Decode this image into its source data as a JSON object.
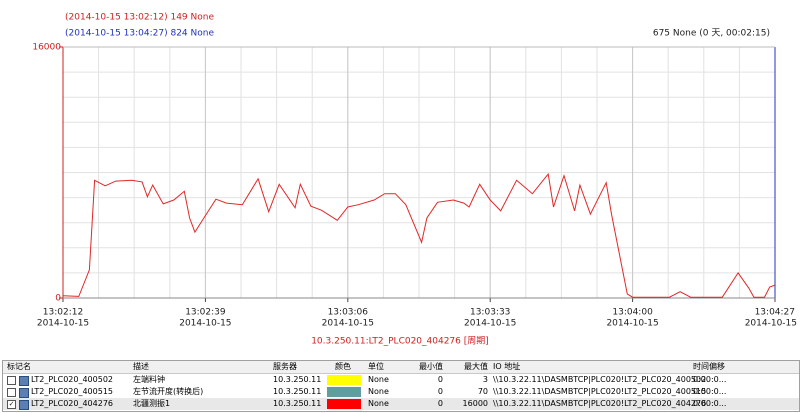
{
  "chart_data": {
    "type": "line",
    "cursor1": "(2014-10-15 13:02:12) 149 None",
    "cursor2": "(2014-10-15 13:04:27) 824 None",
    "span": "675 None (0 天, 00:02:15)",
    "x_label": "10.3.250.11:LT2_PLC020_404276 [周期]",
    "x": [
      "13:02:12",
      "13:02:15",
      "13:02:17",
      "13:02:18",
      "13:02:20",
      "13:02:22",
      "13:02:25",
      "13:02:27",
      "13:02:28",
      "13:02:29",
      "13:02:31",
      "13:02:33",
      "13:02:35",
      "13:02:36",
      "13:02:37",
      "13:02:39",
      "13:02:41",
      "13:02:43",
      "13:02:46",
      "13:02:49",
      "13:02:51",
      "13:02:53",
      "13:02:56",
      "13:02:57",
      "13:02:59",
      "13:03:01",
      "13:03:04",
      "13:03:06",
      "13:03:08",
      "13:03:11",
      "13:03:13",
      "13:03:15",
      "13:03:17",
      "13:03:20",
      "13:03:21",
      "13:03:23",
      "13:03:26",
      "13:03:28",
      "13:03:29",
      "13:03:31",
      "13:03:33",
      "13:03:35",
      "13:03:38",
      "13:03:41",
      "13:03:44",
      "13:03:45",
      "13:03:47",
      "13:03:49",
      "13:03:50",
      "13:03:52",
      "13:03:55",
      "13:03:56",
      "13:03:59",
      "13:04:00",
      "13:04:04",
      "13:04:07",
      "13:04:09",
      "13:04:11",
      "13:04:17",
      "13:04:20",
      "13:04:22",
      "13:04:23",
      "13:04:25",
      "13:04:26",
      "13:04:27"
    ],
    "series": [
      {
        "color": "#e02828",
        "values": [
          149,
          100,
          1800,
          7500,
          7150,
          7450,
          7500,
          7400,
          6450,
          7200,
          6000,
          6250,
          6800,
          5100,
          4200,
          5250,
          6300,
          6050,
          5950,
          7600,
          5500,
          7250,
          5750,
          7250,
          5850,
          5600,
          4950,
          5800,
          5950,
          6250,
          6650,
          6650,
          5950,
          3550,
          5100,
          6100,
          6250,
          6050,
          5800,
          7250,
          6250,
          5550,
          7500,
          6650,
          7900,
          5800,
          7800,
          5550,
          7200,
          5350,
          7350,
          5350,
          250,
          50,
          50,
          50,
          400,
          50,
          50,
          1600,
          650,
          50,
          50,
          700,
          824
        ]
      }
    ],
    "xlim": [
      "13:02:12",
      "13:04:27"
    ],
    "xticks": [
      "13:02:12",
      "13:02:39",
      "13:03:06",
      "13:03:33",
      "13:04:00",
      "13:04:27"
    ],
    "xtick_dates": [
      "2014-10-15",
      "2014-10-15",
      "2014-10-15",
      "2014-10-15",
      "2014-10-15",
      "2014-10-15"
    ],
    "ylim": [
      0,
      16000
    ],
    "yticks": [
      0,
      16000
    ],
    "grid": true
  },
  "table": {
    "columns": [
      "标记名",
      "描述",
      "服务器",
      "颜色",
      "单位",
      "最小值",
      "最大值",
      "IO 地址",
      "时间偏移"
    ],
    "rows": [
      {
        "checked": false,
        "tag": "LT2_PLC020_400502",
        "desc": "左端料钟",
        "server": "10.3.250.11",
        "color": "#ffff00",
        "unit": "None",
        "min": 0,
        "max": 3,
        "io": "\\\\10.3.22.11\\DASMBTCP|PLC020!LT2_PLC020_400502",
        "offset": "0:00:0..."
      },
      {
        "checked": false,
        "tag": "LT2_PLC020_400515",
        "desc": "左节流开度(转换后)",
        "server": "10.3.250.11",
        "color": "#5f9ea0",
        "unit": "None",
        "min": 0,
        "max": 70,
        "io": "\\\\10.3.22.11\\DASMBTCP|PLC020!LT2_PLC020_400515",
        "offset": "0:00:0..."
      },
      {
        "checked": true,
        "tag": "LT2_PLC020_404276",
        "desc": "北疆测振1",
        "server": "10.3.250.11",
        "color": "#ff0000",
        "unit": "None",
        "min": 0,
        "max": 16000,
        "io": "\\\\10.3.22.11\\DASMBTCP|PLC020!LT2_PLC020_404276",
        "offset": "0:00:0..."
      }
    ]
  }
}
